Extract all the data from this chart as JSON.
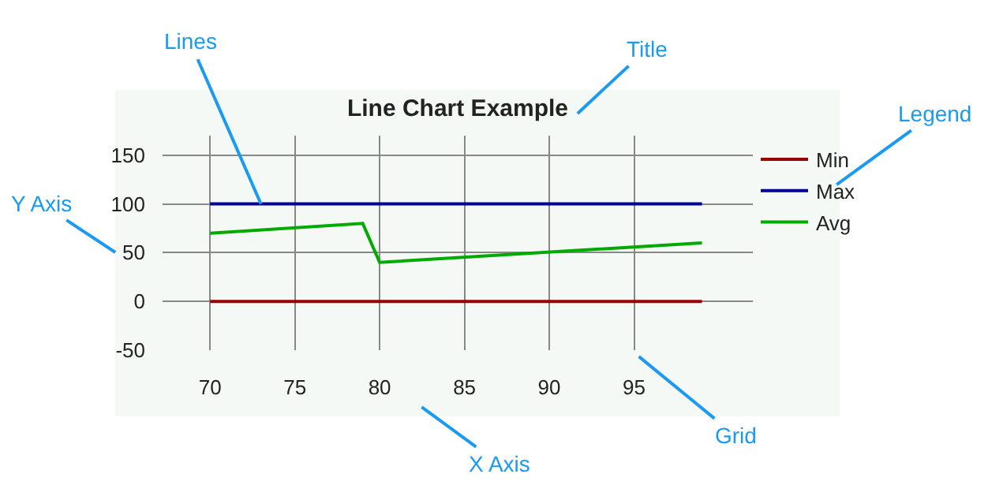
{
  "chart_data": {
    "type": "line",
    "title": "Line Chart Example",
    "x": [
      70,
      79,
      80,
      99
    ],
    "series": [
      {
        "name": "Min",
        "color": "#990000",
        "values": [
          0,
          0,
          0,
          0
        ]
      },
      {
        "name": "Max",
        "color": "#000099",
        "values": [
          100,
          100,
          100,
          100
        ]
      },
      {
        "name": "Avg",
        "color": "#00aa00",
        "values": [
          70,
          80,
          40,
          60
        ]
      }
    ],
    "xlim": [
      67.2,
      102
    ],
    "xticks": [
      70,
      75,
      80,
      85,
      90,
      95
    ],
    "ylim": [
      -50,
      170
    ],
    "yticks": [
      -50,
      0,
      50,
      100,
      150
    ],
    "grid": true,
    "legend": "top right",
    "annotations": [
      {
        "text": "Lines",
        "x": 73,
        "y": 100
      },
      "Title",
      "Legend",
      "Y Axis",
      "X Axis",
      "Grid"
    ]
  }
}
